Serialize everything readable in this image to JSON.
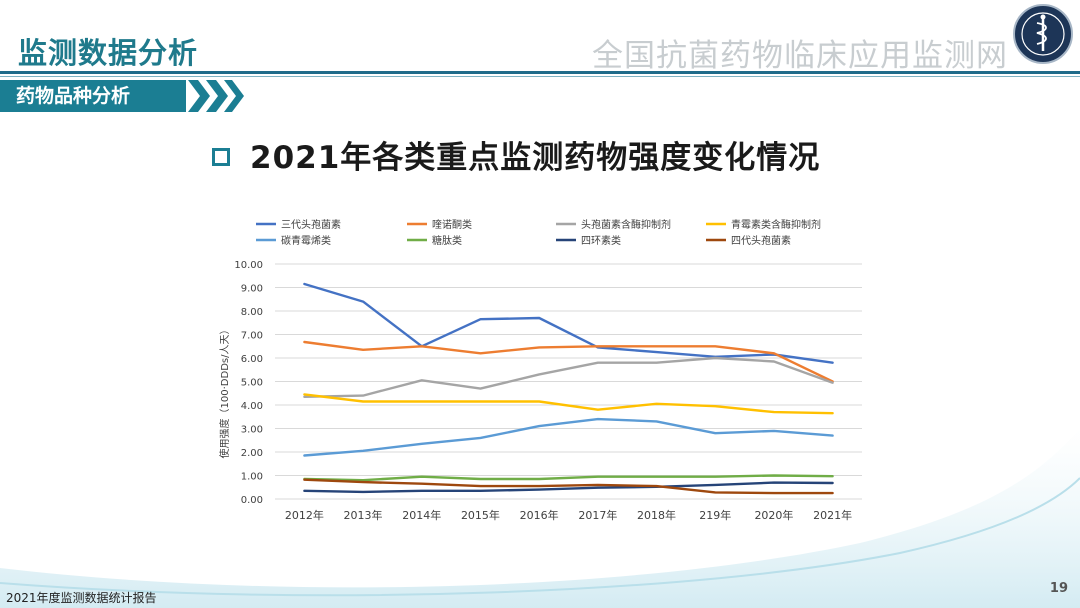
{
  "header": {
    "title": "监测数据分析",
    "site_name": "全国抗菌药物临床应用监测网"
  },
  "section": {
    "label": "药物品种分析"
  },
  "slide": {
    "heading": "2021年各类重点监测药物强度变化情况"
  },
  "footer": {
    "report_title": "2021年度监测数据统计报告",
    "page_number": "19"
  },
  "colors": {
    "accent": "#1b7e93",
    "grid": "#d9d9d9"
  },
  "chart_data": {
    "type": "line",
    "title": "",
    "xlabel": "",
    "ylabel": "使用强度（100·DDDs/人天）",
    "ylim": [
      0,
      10
    ],
    "y_ticks": [
      "0.00",
      "1.00",
      "2.00",
      "3.00",
      "4.00",
      "5.00",
      "6.00",
      "7.00",
      "8.00",
      "9.00",
      "10.00"
    ],
    "categories": [
      "2012年",
      "2013年",
      "2014年",
      "2015年",
      "2016年",
      "2017年",
      "2018年",
      "219年",
      "2020年",
      "2021年"
    ],
    "grid": "horizontal",
    "legend_position": "top",
    "series": [
      {
        "name": "三代头孢菌素",
        "color": "#4472c4",
        "values": [
          9.15,
          8.4,
          6.5,
          7.65,
          7.7,
          6.45,
          6.25,
          6.05,
          6.15,
          5.8
        ]
      },
      {
        "name": "喹诺酮类",
        "color": "#ed7d31",
        "values": [
          6.68,
          6.35,
          6.5,
          6.2,
          6.45,
          6.5,
          6.5,
          6.5,
          6.2,
          5.0
        ]
      },
      {
        "name": "头孢菌素含酶抑制剂",
        "color": "#a5a5a5",
        "values": [
          4.35,
          4.4,
          5.05,
          4.7,
          5.3,
          5.8,
          5.8,
          6.0,
          5.85,
          4.95
        ]
      },
      {
        "name": "青霉素类含酶抑制剂",
        "color": "#ffc000",
        "values": [
          4.45,
          4.15,
          4.15,
          4.15,
          4.15,
          3.8,
          4.05,
          3.95,
          3.7,
          3.65
        ]
      },
      {
        "name": "碳青霉烯类",
        "color": "#5b9bd5",
        "values": [
          1.85,
          2.05,
          2.35,
          2.6,
          3.1,
          3.4,
          3.3,
          2.8,
          2.9,
          2.7
        ]
      },
      {
        "name": "糖肽类",
        "color": "#70ad47",
        "values": [
          0.85,
          0.8,
          0.95,
          0.85,
          0.85,
          0.95,
          0.95,
          0.95,
          1.0,
          0.97
        ]
      },
      {
        "name": "四环素类",
        "color": "#264478",
        "values": [
          0.35,
          0.3,
          0.35,
          0.35,
          0.4,
          0.48,
          0.52,
          0.6,
          0.7,
          0.68
        ]
      },
      {
        "name": "四代头孢菌素",
        "color": "#9e480e",
        "values": [
          0.82,
          0.72,
          0.65,
          0.55,
          0.55,
          0.6,
          0.55,
          0.28,
          0.25,
          0.25
        ]
      }
    ]
  }
}
